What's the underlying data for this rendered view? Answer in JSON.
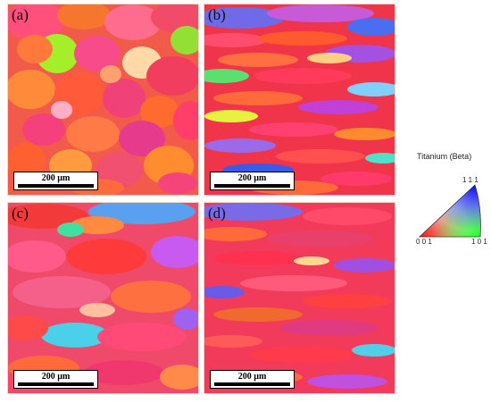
{
  "panels": [
    {
      "label": "(a)",
      "scale": "200 µm"
    },
    {
      "label": "(b)",
      "scale": "200 µm"
    },
    {
      "label": "(c)",
      "scale": "200 µm"
    },
    {
      "label": "(d)",
      "scale": "200 µm"
    }
  ],
  "legend": {
    "title": "Titanium (Beta)",
    "top": "1 1 1",
    "left": "0 0 1",
    "right": "1 0 1"
  },
  "colors": {
    "corner_001": "#ff0000",
    "corner_101": "#00ff00",
    "corner_111": "#0000ff"
  }
}
